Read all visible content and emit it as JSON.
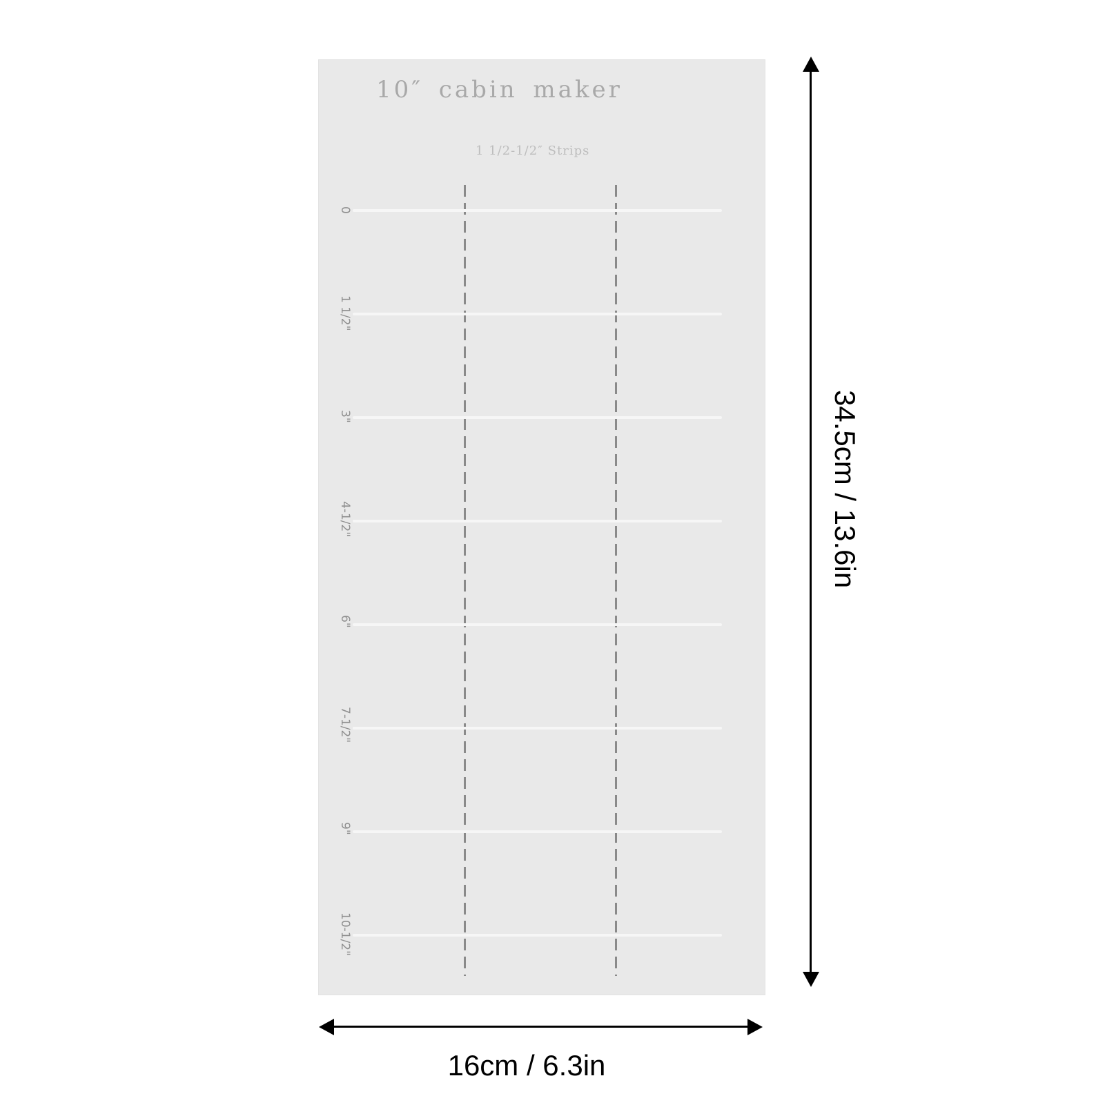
{
  "ruler": {
    "title": "10″  cabin  maker",
    "subtitle": "1 1/2-1/2″ Strips",
    "marks": [
      "0",
      "1 1/2\"",
      "3\"",
      "4-1/2\"",
      "6\"",
      "7-1/2\"",
      "9\"",
      "10-1/2\""
    ]
  },
  "dimensions": {
    "height": "34.5cm / 13.6in",
    "width": "16cm / 6.3in"
  },
  "colors": {
    "ruler_fill": "#e9e9e9",
    "dash_color": "#8a8a8a",
    "dimension_color": "#000000"
  }
}
